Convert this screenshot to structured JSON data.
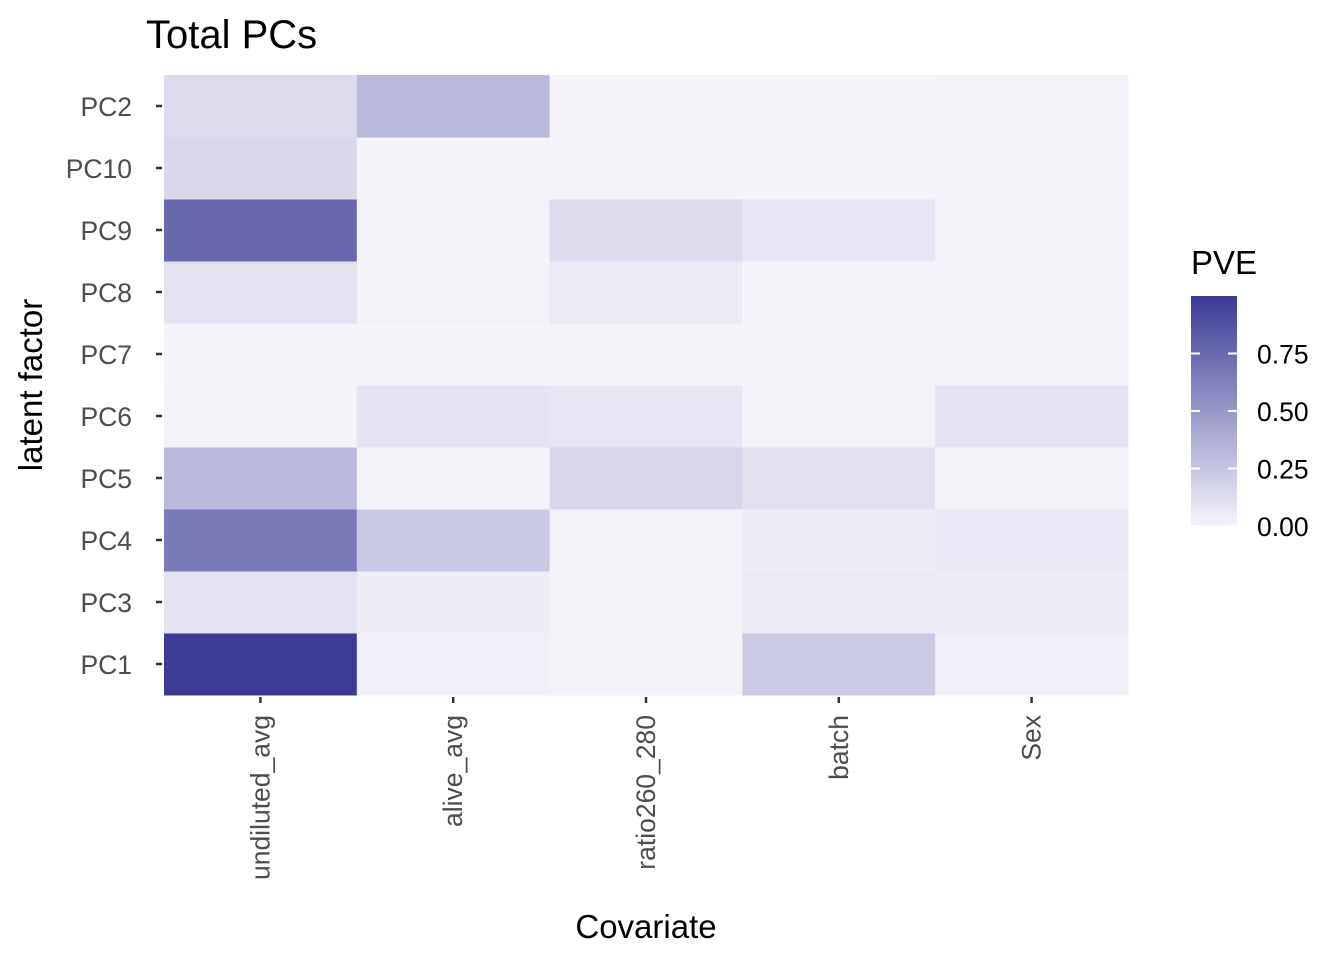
{
  "chart_data": {
    "type": "heatmap",
    "title": "Total PCs",
    "xlabel": "Covariate",
    "ylabel": "latent factor",
    "x_categories": [
      "undiluted_avg",
      "alive_avg",
      "ratio260_280",
      "batch",
      "Sex"
    ],
    "y_categories": [
      "PC1",
      "PC3",
      "PC4",
      "PC5",
      "PC6",
      "PC7",
      "PC8",
      "PC9",
      "PC10",
      "PC2"
    ],
    "values": [
      [
        1.0,
        0.02,
        0.01,
        0.22,
        0.02
      ],
      [
        0.1,
        0.03,
        0.01,
        0.06,
        0.05
      ],
      [
        0.66,
        0.23,
        0.01,
        0.04,
        0.07
      ],
      [
        0.32,
        0.01,
        0.16,
        0.11,
        0.01
      ],
      [
        0.01,
        0.09,
        0.08,
        0.01,
        0.09
      ],
      [
        0.0,
        0.0,
        0.0,
        0.0,
        0.0
      ],
      [
        0.1,
        0.01,
        0.06,
        0.0,
        0.0
      ],
      [
        0.75,
        0.01,
        0.13,
        0.08,
        0.01
      ],
      [
        0.15,
        0.0,
        0.0,
        0.0,
        0.01
      ],
      [
        0.13,
        0.32,
        0.0,
        0.0,
        0.01
      ]
    ],
    "legend": {
      "title": "PVE",
      "ticks": [
        0.0,
        0.25,
        0.5,
        0.75
      ],
      "tick_labels": [
        "0.00",
        "0.25",
        "0.50",
        "0.75"
      ],
      "range": [
        0,
        1.0
      ],
      "position": "right"
    },
    "colors": {
      "low": "#f5f4fa",
      "high": "#3b3b96",
      "panel_bg": "#ffffff",
      "axis_text": "#4d4d4d",
      "title_text": "#000000"
    }
  }
}
